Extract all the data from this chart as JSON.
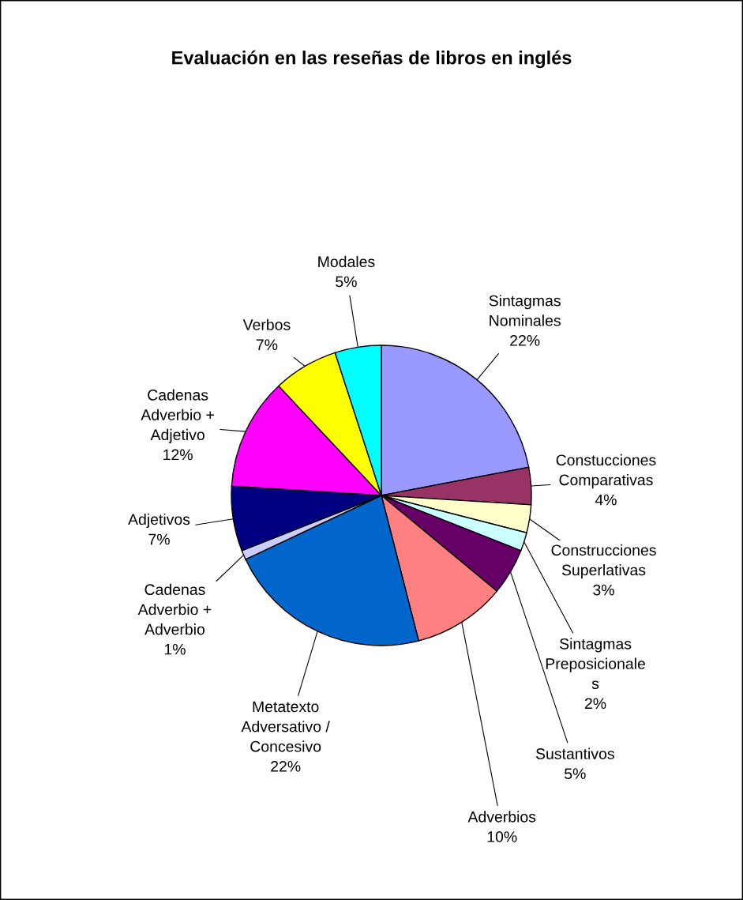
{
  "chart_data": {
    "type": "pie",
    "title": "Evaluación en las reseñas de libros en inglés",
    "categories": [
      "Sintagmas\nNominales",
      "Constucciones\nComparativas",
      "Construcciones\nSuperlativas",
      "Sintagmas\nPreposicionale\ns",
      "Sustantivos",
      "Adverbios",
      "Metatexto\nAdversativo /\nConcesivo",
      "Cadenas\nAdverbio +\nAdverbio",
      "Adjetivos",
      "Cadenas\nAdverbio +\nAdjetivo",
      "Verbos",
      "Modales"
    ],
    "values": [
      22,
      4,
      3,
      2,
      5,
      10,
      22,
      1,
      7,
      12,
      7,
      5
    ],
    "colors": [
      "#9999ff",
      "#993366",
      "#ffffcc",
      "#ccffff",
      "#660066",
      "#ff8080",
      "#0066cc",
      "#ccccff",
      "#000080",
      "#ff00ff",
      "#ffff00",
      "#00ffff"
    ],
    "value_labels": [
      "22%",
      "4%",
      "3%",
      "2%",
      "5%",
      "10%",
      "22%",
      "1%",
      "7%",
      "12%",
      "7%",
      "5%"
    ]
  }
}
